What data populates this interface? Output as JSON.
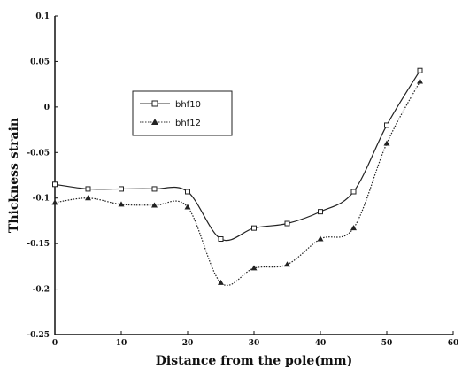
{
  "chart_data": {
    "type": "line",
    "title": "",
    "xlabel": "Distance from the pole(mm)",
    "ylabel": "Thickness strain",
    "xlim": [
      0,
      60
    ],
    "ylim": [
      -0.25,
      0.1
    ],
    "x_ticks": [
      "0",
      "10",
      "20",
      "30",
      "40",
      "50",
      "60"
    ],
    "y_ticks": [
      "0.1",
      "0.05",
      "0",
      "-0.05",
      "-0.1",
      "-0.15",
      "-0.2",
      "-0.25"
    ],
    "grid": false,
    "legend_position": "upper-left inside plot",
    "series": [
      {
        "name": "bhf10",
        "marker": "square",
        "color": "#222222",
        "x": [
          0,
          5,
          10,
          15,
          20,
          25,
          30,
          35,
          40,
          45,
          50,
          55
        ],
        "y": [
          -0.085,
          -0.09,
          -0.09,
          -0.09,
          -0.093,
          -0.145,
          -0.133,
          -0.128,
          -0.115,
          -0.093,
          -0.02,
          0.04
        ]
      },
      {
        "name": "bhf12",
        "marker": "triangle",
        "color": "#222222",
        "x": [
          0,
          5,
          10,
          15,
          20,
          25,
          30,
          35,
          40,
          45,
          50,
          55
        ],
        "y": [
          -0.105,
          -0.1,
          -0.107,
          -0.108,
          -0.11,
          -0.193,
          -0.177,
          -0.173,
          -0.145,
          -0.133,
          -0.04,
          0.028
        ]
      }
    ]
  }
}
